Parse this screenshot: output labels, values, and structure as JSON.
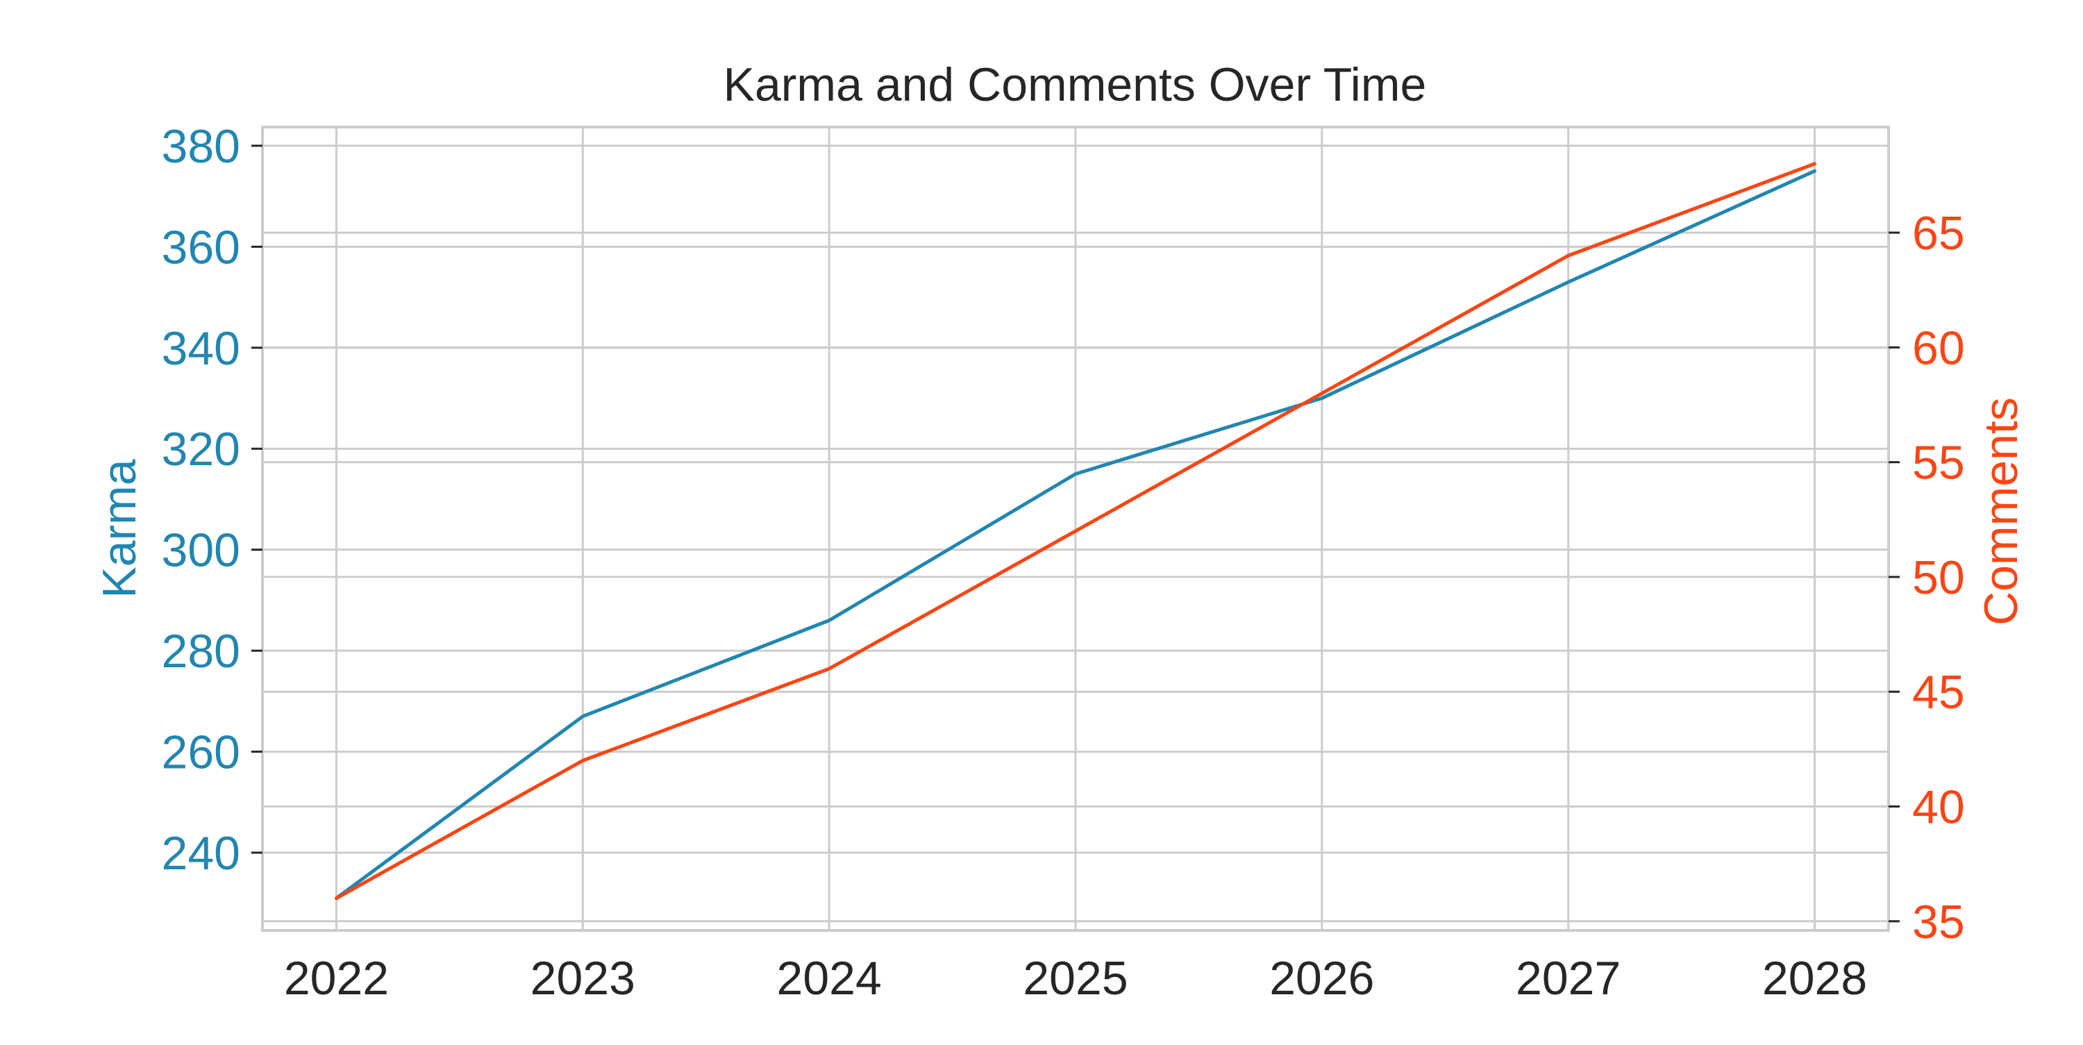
{
  "chart_data": {
    "type": "line",
    "title": "Karma and Comments Over Time",
    "x": [
      2022,
      2023,
      2024,
      2025,
      2026,
      2027,
      2028
    ],
    "x_tick_labels": [
      "2022",
      "2023",
      "2024",
      "2025",
      "2026",
      "2027",
      "2028"
    ],
    "xlim": [
      2021.7,
      2028.3
    ],
    "y_left": {
      "label": "Karma",
      "color": "#2186b0",
      "ylim": [
        224.6,
        383.7
      ],
      "ticks": [
        240,
        260,
        280,
        300,
        320,
        340,
        360,
        380
      ],
      "tick_labels": [
        "240",
        "260",
        "280",
        "300",
        "320",
        "340",
        "360",
        "380"
      ]
    },
    "y_right": {
      "label": "Comments",
      "color": "#fc4513",
      "ylim": [
        34.6,
        69.6
      ],
      "ticks": [
        35,
        40,
        45,
        50,
        55,
        60,
        65
      ],
      "tick_labels": [
        "35",
        "40",
        "45",
        "50",
        "55",
        "60",
        "65"
      ]
    },
    "series": [
      {
        "name": "Karma",
        "axis": "left",
        "color": "#2186b0",
        "values": [
          231,
          267,
          286,
          315,
          330,
          353,
          375
        ]
      },
      {
        "name": "Comments",
        "axis": "right",
        "color": "#fc4513",
        "values": [
          36,
          42,
          46,
          52,
          58,
          64,
          68
        ]
      }
    ],
    "grid": true,
    "legend": "none"
  }
}
